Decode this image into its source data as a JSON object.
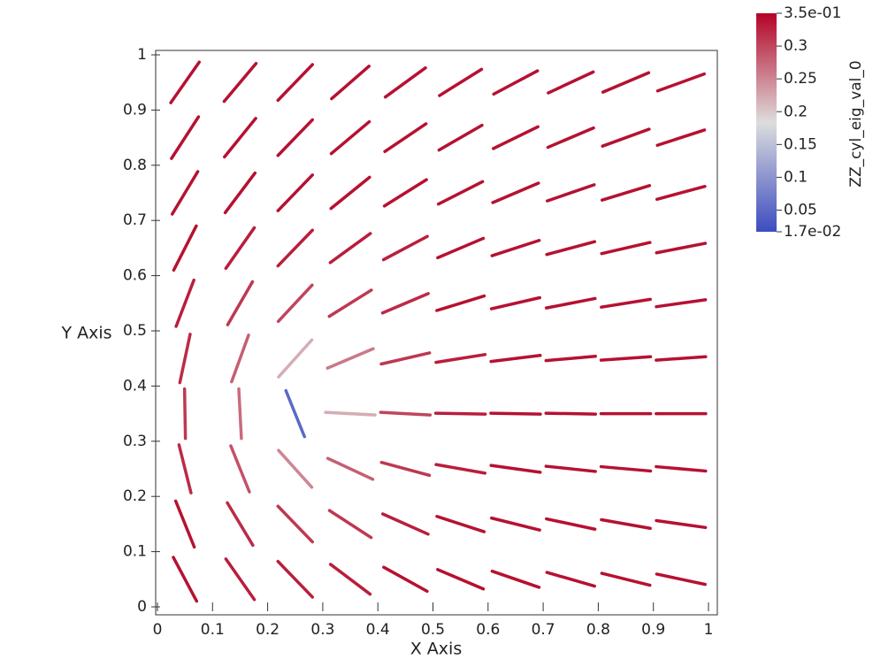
{
  "chart_data": {
    "type": "glyph",
    "xlabel": "X Axis",
    "ylabel": "Y Axis",
    "xlim": [
      0,
      1
    ],
    "ylim": [
      0,
      1
    ],
    "xticks": [
      0,
      0.1,
      0.2,
      0.3,
      0.4,
      0.5,
      0.6,
      0.7,
      0.8,
      0.9,
      1
    ],
    "yticks": [
      0,
      0.1,
      0.2,
      0.3,
      0.4,
      0.5,
      0.6,
      0.7,
      0.8,
      0.9,
      1
    ],
    "x": [
      0.05,
      0.15,
      0.25,
      0.35,
      0.45,
      0.55,
      0.65,
      0.75,
      0.85,
      0.95
    ],
    "y": [
      0.05,
      0.15,
      0.25,
      0.35,
      0.45,
      0.55,
      0.65,
      0.75,
      0.85,
      0.95
    ],
    "angle": [
      [
        -62,
        -55,
        -46,
        -37,
        -29,
        -23,
        -19,
        -16,
        -14,
        -12
      ],
      [
        -68,
        -59,
        -46,
        -33,
        -24,
        -18,
        -14,
        -12,
        -10,
        -8
      ],
      [
        -76,
        -68,
        -48,
        -25,
        -15,
        -10,
        -8,
        -6,
        -5,
        -5
      ],
      [
        -89,
        -87,
        -68,
        -3,
        -3,
        -1,
        -1,
        -1,
        0,
        0
      ],
      [
        78,
        70,
        48,
        23,
        13,
        9,
        7,
        5,
        4,
        4
      ],
      [
        69,
        60,
        47,
        32,
        23,
        17,
        13,
        11,
        9,
        8
      ],
      [
        63,
        55,
        46,
        36,
        28,
        23,
        18,
        15,
        13,
        11
      ],
      [
        59,
        53,
        46,
        39,
        32,
        27,
        23,
        19,
        17,
        15
      ],
      [
        57,
        51,
        46,
        40,
        34,
        30,
        26,
        23,
        20,
        18
      ],
      [
        55,
        50,
        46,
        41,
        36,
        32,
        28,
        25,
        23,
        20
      ]
    ],
    "values": [
      [
        0.34,
        0.33,
        0.33,
        0.33,
        0.34,
        0.34,
        0.34,
        0.34,
        0.34,
        0.34
      ],
      [
        0.34,
        0.32,
        0.31,
        0.31,
        0.33,
        0.34,
        0.34,
        0.34,
        0.34,
        0.34
      ],
      [
        0.32,
        0.29,
        0.25,
        0.28,
        0.31,
        0.33,
        0.34,
        0.34,
        0.34,
        0.34
      ],
      [
        0.31,
        0.27,
        0.05,
        0.22,
        0.3,
        0.33,
        0.34,
        0.34,
        0.34,
        0.34
      ],
      [
        0.32,
        0.28,
        0.22,
        0.26,
        0.31,
        0.33,
        0.34,
        0.34,
        0.34,
        0.34
      ],
      [
        0.33,
        0.31,
        0.3,
        0.31,
        0.32,
        0.34,
        0.34,
        0.34,
        0.34,
        0.34
      ],
      [
        0.34,
        0.33,
        0.33,
        0.33,
        0.33,
        0.34,
        0.34,
        0.34,
        0.34,
        0.34
      ],
      [
        0.34,
        0.34,
        0.34,
        0.34,
        0.34,
        0.34,
        0.34,
        0.34,
        0.34,
        0.34
      ],
      [
        0.34,
        0.34,
        0.34,
        0.34,
        0.34,
        0.34,
        0.34,
        0.34,
        0.34,
        0.34
      ],
      [
        0.34,
        0.34,
        0.34,
        0.34,
        0.34,
        0.34,
        0.34,
        0.34,
        0.34,
        0.34
      ]
    ],
    "colorbar": {
      "title": "ZZ_cyl_eig_val_0",
      "lim": [
        0.017,
        0.35
      ],
      "ticks": [
        {
          "value": 0.35,
          "label": "3.5e-01"
        },
        0.3,
        0.25,
        0.2,
        0.15,
        0.1,
        0.05,
        {
          "value": 0.017,
          "label": "1.7e-02"
        }
      ],
      "colors": [
        "#3b4cc0",
        "#dddddd",
        "#b40426"
      ]
    }
  }
}
